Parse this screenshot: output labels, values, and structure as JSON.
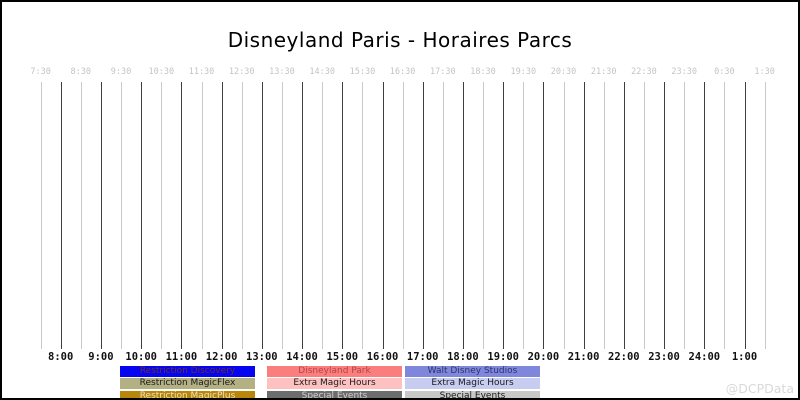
{
  "title": "Disneyland Paris - Horaires Parcs",
  "watermark": "@DCPData",
  "chart_data": {
    "type": "timeline",
    "title": "Disneyland Paris - Horaires Parcs",
    "x_axis": {
      "start_label": "7:30",
      "end_label": "1:30",
      "interval_minutes": 30,
      "top_tick_labels": [
        "7:30",
        "8:30",
        "9:30",
        "10:30",
        "11:30",
        "12:30",
        "13:30",
        "14:30",
        "15:30",
        "16:30",
        "17:30",
        "18:30",
        "19:30",
        "20:30",
        "21:30",
        "22:30",
        "23:30",
        "0:30",
        "1:30"
      ],
      "bottom_tick_labels": [
        "8:00",
        "9:00",
        "10:00",
        "11:00",
        "12:00",
        "13:00",
        "14:00",
        "15:00",
        "16:00",
        "17:00",
        "18:00",
        "19:00",
        "20:00",
        "21:00",
        "22:00",
        "23:00",
        "24:00",
        "1:00"
      ]
    },
    "gridlines": {
      "half_hour_color": "#c9c9c9",
      "hour_color": "#3f3f3f",
      "count": 37
    },
    "series": []
  },
  "legend": {
    "columns": [
      {
        "items": [
          {
            "label": "Restriction Discovery",
            "bg": "#0505f0",
            "fg": "#6b3030"
          },
          {
            "label": "Restriction MagicFlex",
            "bg": "#b3b183",
            "fg": "#1a1a1a"
          },
          {
            "label": "Restriction MagicPlus",
            "bg": "#b8860b",
            "fg": "#e9e2b9"
          }
        ]
      },
      {
        "items": [
          {
            "label": "Disneyland Park",
            "bg": "#fb7e7e",
            "fg": "#b64545"
          },
          {
            "label": "Extra Magic Hours",
            "bg": "#fdc1c1",
            "fg": "#1a1a1a"
          },
          {
            "label": "Special Events",
            "bg": "#6d6d6d",
            "fg": "#cfcfcf"
          }
        ]
      },
      {
        "items": [
          {
            "label": "Walt Disney Studios",
            "bg": "#7e87db",
            "fg": "#32326e"
          },
          {
            "label": "Extra Magic Hours",
            "bg": "#c7cdf1",
            "fg": "#1a1a1a"
          },
          {
            "label": "Special Events",
            "bg": "#c8c8c8",
            "fg": "#1a1a1a"
          }
        ]
      }
    ]
  }
}
